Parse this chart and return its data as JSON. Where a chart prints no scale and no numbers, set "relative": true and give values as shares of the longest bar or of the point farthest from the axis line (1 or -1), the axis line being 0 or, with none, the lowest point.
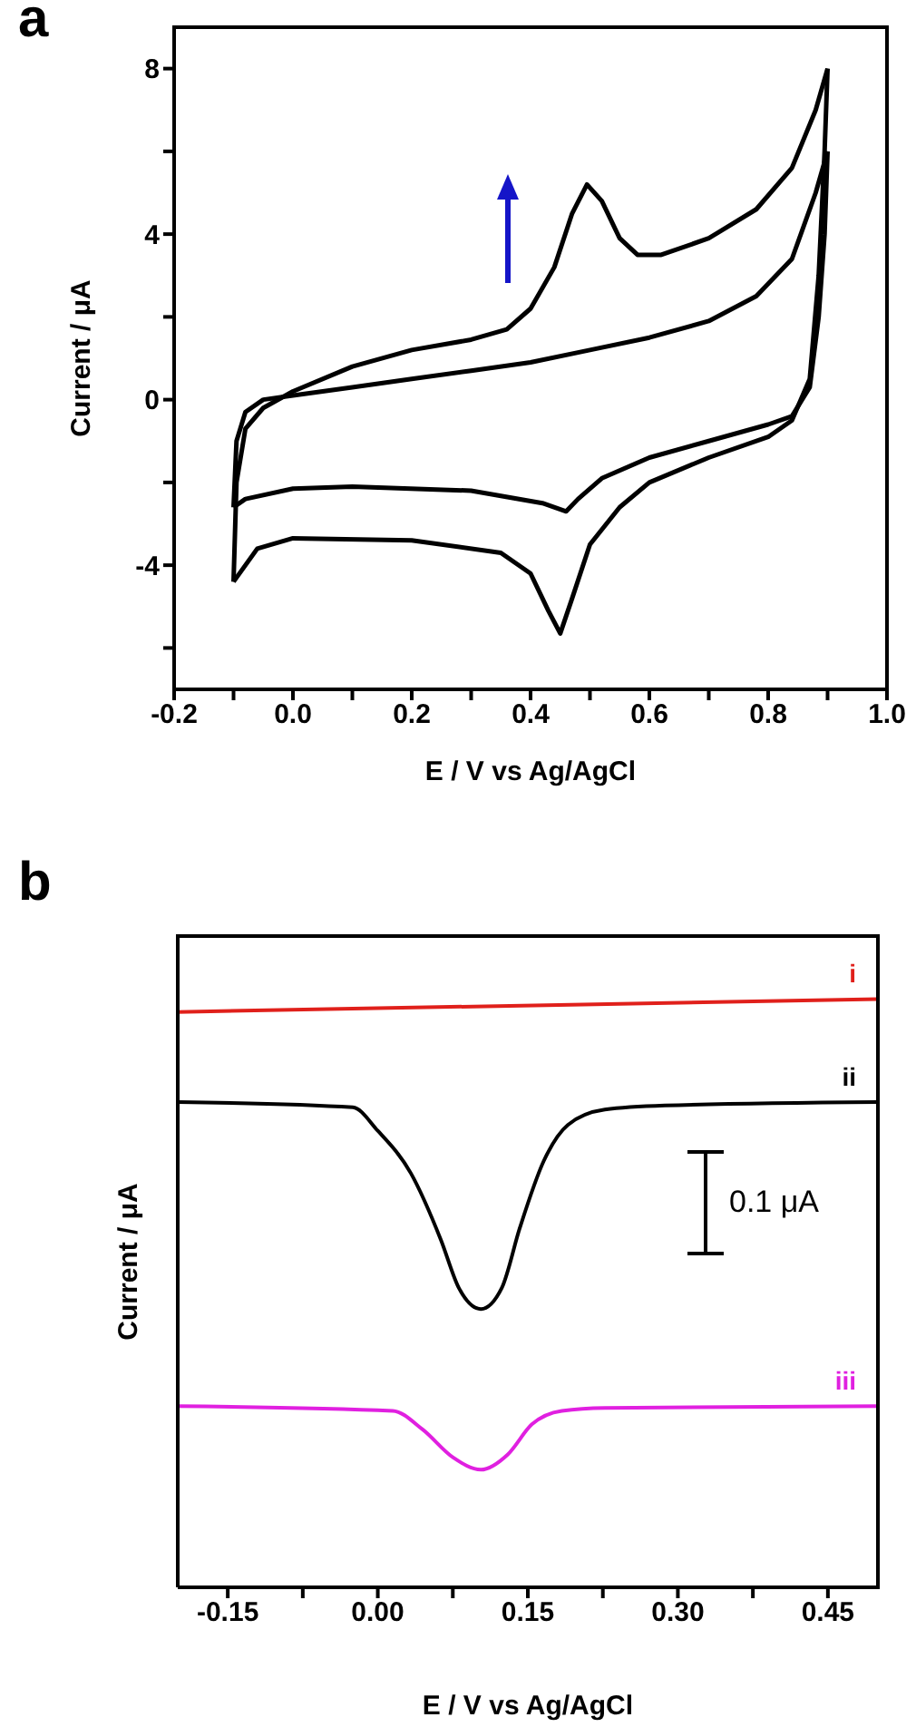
{
  "chart_data": [
    {
      "type": "line",
      "title": "a",
      "xlabel": "E / V vs Ag/AgCl",
      "ylabel": "Current / μA",
      "xlim": [
        -0.2,
        1.0
      ],
      "xticks": [
        {
          "value": -0.2,
          "label": "-0.2"
        },
        {
          "value": -0.1,
          "label": null
        },
        {
          "value": 0,
          "label": "0.0"
        },
        {
          "value": 0.1,
          "label": null
        },
        {
          "value": 0.2,
          "label": "0.2"
        },
        {
          "value": 0.3,
          "label": null
        },
        {
          "value": 0.4,
          "label": "0.4"
        },
        {
          "value": 0.5,
          "label": null
        },
        {
          "value": 0.6,
          "label": "0.6"
        },
        {
          "value": 0.7,
          "label": null
        },
        {
          "value": 0.8,
          "label": "0.8"
        },
        {
          "value": 0.9,
          "label": null
        },
        {
          "value": 1.0,
          "label": "1.0"
        }
      ],
      "ylim": [
        -7,
        9
      ],
      "yticks": [
        {
          "value": -6,
          "label": null
        },
        -4,
        {
          "value": -2,
          "label": null
        },
        0,
        {
          "value": 2,
          "label": null
        },
        4,
        {
          "value": 6,
          "label": null
        },
        8
      ],
      "series": [
        {
          "color": "#000000",
          "x": [
            -0.1,
            -0.095,
            -0.08,
            -0.05,
            0,
            0.1,
            0.2,
            0.3,
            0.36,
            0.4,
            0.44,
            0.47,
            0.495,
            0.52,
            0.55,
            0.58,
            0.62,
            0.7,
            0.78,
            0.84,
            0.88,
            0.9
          ],
          "values": [
            -4.4,
            -2.0,
            -0.7,
            -0.2,
            0.2,
            0.8,
            1.2,
            1.45,
            1.7,
            2.2,
            3.2,
            4.5,
            5.2,
            4.8,
            3.9,
            3.5,
            3.5,
            3.9,
            4.6,
            5.6,
            7.0,
            8.0
          ]
        },
        {
          "color": "#000000",
          "x": [
            0.9,
            0.895,
            0.885,
            0.87,
            0.84,
            0.8,
            0.7,
            0.6,
            0.55,
            0.5,
            0.47,
            0.45,
            0.43,
            0.4,
            0.35,
            0.2,
            0,
            -0.06,
            -0.1
          ],
          "values": [
            8.0,
            6.0,
            3.0,
            0.5,
            -0.5,
            -0.9,
            -1.4,
            -2.0,
            -2.6,
            -3.5,
            -4.8,
            -5.65,
            -5.1,
            -4.2,
            -3.7,
            -3.4,
            -3.35,
            -3.6,
            -4.4
          ]
        },
        {
          "color": "#000000",
          "x": [
            -0.1,
            -0.095,
            -0.08,
            -0.05,
            0,
            0.1,
            0.2,
            0.3,
            0.4,
            0.5,
            0.6,
            0.7,
            0.78,
            0.84,
            0.88,
            0.9
          ],
          "values": [
            -2.6,
            -1.0,
            -0.3,
            0.0,
            0.1,
            0.3,
            0.5,
            0.7,
            0.9,
            1.2,
            1.5,
            1.9,
            2.5,
            3.4,
            5.0,
            6.0
          ]
        },
        {
          "color": "#000000",
          "x": [
            0.9,
            0.895,
            0.885,
            0.87,
            0.84,
            0.8,
            0.7,
            0.6,
            0.52,
            0.48,
            0.46,
            0.42,
            0.3,
            0.1,
            0,
            -0.08,
            -0.1
          ],
          "values": [
            6.0,
            4.0,
            2.0,
            0.3,
            -0.4,
            -0.6,
            -1.0,
            -1.4,
            -1.9,
            -2.4,
            -2.7,
            -2.5,
            -2.2,
            -2.1,
            -2.15,
            -2.4,
            -2.6
          ]
        }
      ]
    },
    {
      "type": "line",
      "title": "b",
      "xlabel": "E / V vs Ag/AgCl",
      "ylabel": "Current / μA",
      "relative": true,
      "xlim": [
        -0.2,
        0.5
      ],
      "xticks": [
        {
          "value": -0.15,
          "label": "-0.15"
        },
        {
          "value": -0.075,
          "label": null
        },
        {
          "value": 0,
          "label": "0.00"
        },
        {
          "value": 0.075,
          "label": null
        },
        {
          "value": 0.15,
          "label": "0.15"
        },
        {
          "value": 0.225,
          "label": null
        },
        {
          "value": 0.3,
          "label": "0.30"
        },
        {
          "value": 0.375,
          "label": null
        },
        {
          "value": 0.45,
          "label": "0.45"
        }
      ],
      "annotations": [
        "0.1 μA"
      ],
      "series": [
        {
          "name": "i",
          "color": "#e0201b",
          "x": [
            -0.2,
            0.5
          ],
          "values": [
            0.978,
            1.0
          ]
        },
        {
          "name": "ii",
          "color": "#000000",
          "x": [
            -0.2,
            -0.025,
            0,
            0.033,
            0.063,
            0.081,
            0.103,
            0.124,
            0.142,
            0.166,
            0.19,
            0.227,
            0.287,
            0.5
          ],
          "values": [
            0.825,
            0.816,
            0.776,
            0.704,
            0.591,
            0.509,
            0.473,
            0.509,
            0.611,
            0.725,
            0.786,
            0.812,
            0.819,
            0.825
          ]
        },
        {
          "name": "iii",
          "color": "#e020e0",
          "x": [
            -0.2,
            0.015,
            0.045,
            0.075,
            0.103,
            0.13,
            0.154,
            0.184,
            0.227,
            0.5
          ],
          "values": [
            0.308,
            0.3,
            0.268,
            0.221,
            0.2,
            0.226,
            0.277,
            0.3,
            0.305,
            0.308
          ]
        }
      ]
    }
  ]
}
